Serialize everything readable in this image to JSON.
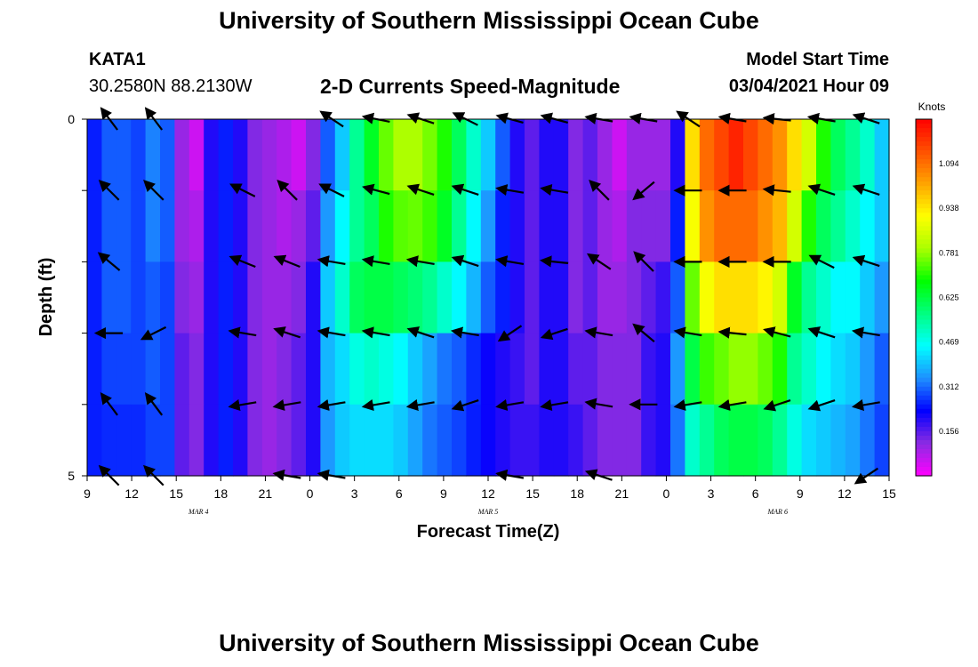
{
  "header": {
    "title": "University of Southern Mississippi Ocean Cube",
    "station_id": "KATA1",
    "coordinates": "30.2580N 88.2130W",
    "chart_title": "2-D Currents Speed-Magnitude",
    "model_start_label": "Model Start Time",
    "model_start_value": "03/04/2021 Hour 09"
  },
  "footer": {
    "title": "University of Southern Mississippi Ocean Cube"
  },
  "chart_data": {
    "type": "heatmap",
    "title": "2-D Currents Speed-Magnitude",
    "xlabel": "Forecast Time(Z)",
    "ylabel": "Depth (ft)",
    "x_ticks": [
      "9",
      "12",
      "15",
      "18",
      "21",
      "0",
      "3",
      "6",
      "9",
      "12",
      "15",
      "18",
      "21",
      "0",
      "3",
      "6",
      "9",
      "12",
      "15"
    ],
    "x_hours": [
      0,
      3,
      6,
      9,
      12,
      15,
      18,
      21,
      24,
      27,
      30,
      33,
      36,
      39,
      42,
      45,
      48,
      51,
      54
    ],
    "date_labels": [
      {
        "text": "MAR 4",
        "hour": 7.5
      },
      {
        "text": "MAR 5",
        "hour": 27
      },
      {
        "text": "MAR 6",
        "hour": 46.5
      }
    ],
    "y_ticks": [
      "0",
      "5"
    ],
    "ylim": [
      0,
      5
    ],
    "xlim": [
      0,
      54
    ],
    "colorbar": {
      "unit": "Knots",
      "min": 0,
      "max": 1.25,
      "ticks": [
        "1.094",
        "0.938",
        "0.781",
        "0.625",
        "0.469",
        "0.312",
        "0.156"
      ],
      "tick_values": [
        1.094,
        0.938,
        0.781,
        0.625,
        0.469,
        0.312,
        0.156
      ],
      "colors": [
        "#ff00ff",
        "#8a2be2",
        "#0000ff",
        "#1e90ff",
        "#00ffff",
        "#00ff80",
        "#00ff00",
        "#aaff00",
        "#ffff00",
        "#ffa500",
        "#ff5000",
        "#ff0000"
      ]
    },
    "depth_rows": 5,
    "speed_knots": [
      [
        0.25,
        0.3,
        0.3,
        0.28,
        0.33,
        0.3,
        0.1,
        0.05,
        0.2,
        0.25,
        0.2,
        0.12,
        0.1,
        0.08,
        0.05,
        0.12,
        0.3,
        0.4,
        0.55,
        0.65,
        0.75,
        0.8,
        0.8,
        0.76,
        0.7,
        0.6,
        0.5,
        0.4,
        0.3,
        0.2,
        0.15,
        0.2,
        0.2,
        0.12,
        0.15,
        0.1,
        0.05,
        0.1,
        0.1,
        0.1,
        0.2,
        0.95,
        1.1,
        1.15,
        1.2,
        1.15,
        1.1,
        1.05,
        0.95,
        0.85,
        0.7,
        0.6,
        0.55,
        0.5,
        0.4
      ],
      [
        0.25,
        0.3,
        0.3,
        0.28,
        0.33,
        0.3,
        0.1,
        0.08,
        0.2,
        0.25,
        0.2,
        0.12,
        0.1,
        0.08,
        0.1,
        0.15,
        0.35,
        0.45,
        0.55,
        0.6,
        0.7,
        0.74,
        0.75,
        0.72,
        0.65,
        0.55,
        0.45,
        0.35,
        0.25,
        0.2,
        0.15,
        0.2,
        0.2,
        0.12,
        0.15,
        0.1,
        0.08,
        0.12,
        0.12,
        0.12,
        0.25,
        0.9,
        1.05,
        1.1,
        1.1,
        1.1,
        1.05,
        1.0,
        0.85,
        0.7,
        0.6,
        0.55,
        0.5,
        0.45,
        0.4
      ],
      [
        0.25,
        0.3,
        0.3,
        0.28,
        0.3,
        0.28,
        0.12,
        0.1,
        0.2,
        0.25,
        0.2,
        0.12,
        0.1,
        0.1,
        0.12,
        0.2,
        0.4,
        0.5,
        0.6,
        0.62,
        0.62,
        0.6,
        0.58,
        0.55,
        0.5,
        0.45,
        0.38,
        0.3,
        0.25,
        0.2,
        0.15,
        0.2,
        0.2,
        0.12,
        0.15,
        0.1,
        0.1,
        0.12,
        0.15,
        0.18,
        0.3,
        0.75,
        0.9,
        0.95,
        0.95,
        0.95,
        0.92,
        0.85,
        0.65,
        0.55,
        0.5,
        0.45,
        0.45,
        0.4,
        0.35
      ],
      [
        0.25,
        0.28,
        0.28,
        0.28,
        0.3,
        0.28,
        0.15,
        0.12,
        0.2,
        0.25,
        0.2,
        0.12,
        0.1,
        0.12,
        0.15,
        0.2,
        0.38,
        0.42,
        0.48,
        0.5,
        0.48,
        0.45,
        0.4,
        0.36,
        0.32,
        0.3,
        0.26,
        0.22,
        0.2,
        0.18,
        0.15,
        0.2,
        0.2,
        0.15,
        0.15,
        0.12,
        0.12,
        0.12,
        0.18,
        0.2,
        0.35,
        0.62,
        0.72,
        0.75,
        0.78,
        0.78,
        0.75,
        0.7,
        0.55,
        0.5,
        0.45,
        0.42,
        0.4,
        0.35,
        0.3
      ],
      [
        0.25,
        0.26,
        0.26,
        0.26,
        0.28,
        0.28,
        0.15,
        0.12,
        0.2,
        0.25,
        0.2,
        0.12,
        0.1,
        0.12,
        0.15,
        0.2,
        0.35,
        0.4,
        0.42,
        0.42,
        0.42,
        0.4,
        0.36,
        0.32,
        0.3,
        0.28,
        0.25,
        0.22,
        0.2,
        0.18,
        0.18,
        0.2,
        0.2,
        0.18,
        0.15,
        0.12,
        0.12,
        0.12,
        0.18,
        0.2,
        0.32,
        0.5,
        0.55,
        0.6,
        0.62,
        0.62,
        0.6,
        0.55,
        0.48,
        0.42,
        0.4,
        0.38,
        0.36,
        0.32,
        0.28
      ]
    ],
    "vector_hours": [
      1.5,
      4.5,
      10.5,
      13.5,
      16.5,
      19.5,
      22.5,
      25.5,
      28.5,
      31.5,
      34.5,
      37.5,
      40.5,
      43.5,
      46.5,
      49.5,
      52.5
    ],
    "vectors": [
      [
        [
          0.3,
          0.4
        ],
        [
          0.3,
          0.4
        ],
        [
          0,
          0
        ],
        [
          0,
          0
        ],
        [
          0.3,
          0.2
        ],
        [
          0.25,
          0.05
        ],
        [
          0.3,
          0.1
        ],
        [
          0.3,
          0.15
        ],
        [
          0.3,
          0.08
        ],
        [
          0.3,
          0.08
        ],
        [
          0.3,
          0.05
        ],
        [
          0.3,
          0.05
        ],
        [
          0.3,
          0.2
        ],
        [
          0.3,
          0.05
        ],
        [
          0.3,
          0.03
        ],
        [
          0.3,
          0.05
        ],
        [
          0.3,
          0.1
        ]
      ],
      [
        [
          0.3,
          0.3
        ],
        [
          0.3,
          0.3
        ],
        [
          0.3,
          0.15
        ],
        [
          0.25,
          0.25
        ],
        [
          0.3,
          0.15
        ],
        [
          0.3,
          0.08
        ],
        [
          0.3,
          0.1
        ],
        [
          0.3,
          0.1
        ],
        [
          0.3,
          0.05
        ],
        [
          0.3,
          0.05
        ],
        [
          0.3,
          0.3
        ],
        [
          0.3,
          -0.25
        ],
        [
          0.3,
          0
        ],
        [
          0.3,
          0
        ],
        [
          0.3,
          0.03
        ],
        [
          0.3,
          0.1
        ],
        [
          0.3,
          0.1
        ]
      ],
      [
        [
          0.3,
          0.25
        ],
        [
          0,
          0
        ],
        [
          0.3,
          0.12
        ],
        [
          0.3,
          0.12
        ],
        [
          0.3,
          0.05
        ],
        [
          0.3,
          0.05
        ],
        [
          0.3,
          0.05
        ],
        [
          0.3,
          0.1
        ],
        [
          0.3,
          0.05
        ],
        [
          0.3,
          0.03
        ],
        [
          0.3,
          0.2
        ],
        [
          0.3,
          0.3
        ],
        [
          0.3,
          0
        ],
        [
          0.3,
          0
        ],
        [
          0.3,
          0
        ],
        [
          0.3,
          0.15
        ],
        [
          0.3,
          0.1
        ]
      ],
      [
        [
          0.3,
          0
        ],
        [
          0.3,
          -0.15
        ],
        [
          0.3,
          0.05
        ],
        [
          0.3,
          0.1
        ],
        [
          0.3,
          0.05
        ],
        [
          0.3,
          0.05
        ],
        [
          0.3,
          0.1
        ],
        [
          0.3,
          0.05
        ],
        [
          0.3,
          -0.2
        ],
        [
          0.3,
          -0.1
        ],
        [
          0.3,
          0.05
        ],
        [
          0.3,
          0.25
        ],
        [
          0.3,
          0.05
        ],
        [
          0.3,
          0.03
        ],
        [
          0.3,
          0.08
        ],
        [
          0.3,
          0.1
        ],
        [
          0.3,
          0.05
        ]
      ],
      [
        [
          0.3,
          0.4
        ],
        [
          0.3,
          0.4
        ],
        [
          0.3,
          -0.05
        ],
        [
          0.3,
          -0.05
        ],
        [
          0.3,
          -0.05
        ],
        [
          0.3,
          -0.05
        ],
        [
          0.3,
          -0.05
        ],
        [
          0.3,
          -0.1
        ],
        [
          0.3,
          -0.05
        ],
        [
          0.3,
          -0.05
        ],
        [
          0.3,
          0.05
        ],
        [
          0.3,
          0
        ],
        [
          0.3,
          -0.05
        ],
        [
          0.3,
          -0.05
        ],
        [
          0.3,
          -0.1
        ],
        [
          0.3,
          -0.1
        ],
        [
          0.3,
          -0.05
        ]
      ],
      [
        [
          0.3,
          0.3
        ],
        [
          0.3,
          0.3
        ],
        [
          0,
          0
        ],
        [
          0.3,
          0.05
        ],
        [
          0.3,
          0.05
        ],
        [
          0,
          0
        ],
        [
          0,
          0
        ],
        [
          0,
          0
        ],
        [
          0.3,
          0.05
        ],
        [
          0,
          0
        ],
        [
          0.3,
          0.1
        ],
        [
          0,
          0
        ],
        [
          0,
          0
        ],
        [
          0,
          0
        ],
        [
          0,
          0
        ],
        [
          0,
          0
        ],
        [
          0.3,
          -0.2
        ]
      ]
    ]
  }
}
